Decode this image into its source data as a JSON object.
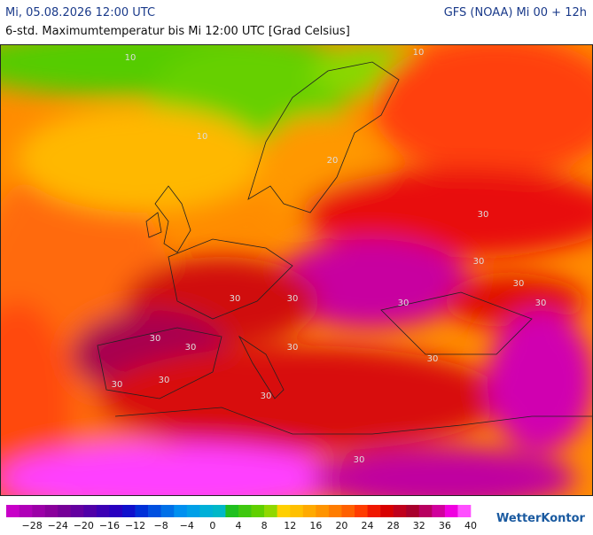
{
  "header": {
    "date": "Mi, 05.08.2026 12:00 UTC",
    "model": "GFS (NOAA) Mi 00 + 12h",
    "subtitle": "6-std. Maximumtemperatur bis Mi 12:00 UTC [Grad Celsius]"
  },
  "map": {
    "contour_labels": [
      "10",
      "10",
      "10",
      "20",
      "30",
      "30",
      "30",
      "30",
      "30",
      "30",
      "30",
      "30",
      "30",
      "30",
      "30",
      "30",
      "30",
      "30",
      "30"
    ]
  },
  "legend": {
    "colors": [
      "#c800c8",
      "#b000b8",
      "#9c00a8",
      "#8a009c",
      "#760098",
      "#6400a0",
      "#5000a8",
      "#3c00b4",
      "#2800c0",
      "#1010cc",
      "#0030d8",
      "#0050e0",
      "#0070e8",
      "#0090f0",
      "#00a0e8",
      "#00b0d8",
      "#00b8c8",
      "#20c020",
      "#40c810",
      "#60d000",
      "#90d800",
      "#ffd000",
      "#ffc000",
      "#ffaa00",
      "#ff9400",
      "#ff7c00",
      "#ff6000",
      "#ff3c00",
      "#f01800",
      "#d80000",
      "#c0001c",
      "#a8002c",
      "#b80060",
      "#d0009c",
      "#f000e0",
      "#ff50ff"
    ],
    "labels": [
      "−28",
      "−24",
      "−20",
      "−16",
      "−12",
      "−8",
      "−4",
      "0",
      "4",
      "8",
      "12",
      "16",
      "20",
      "24",
      "28",
      "32",
      "36",
      "40"
    ]
  },
  "logo": "WetterKontor"
}
